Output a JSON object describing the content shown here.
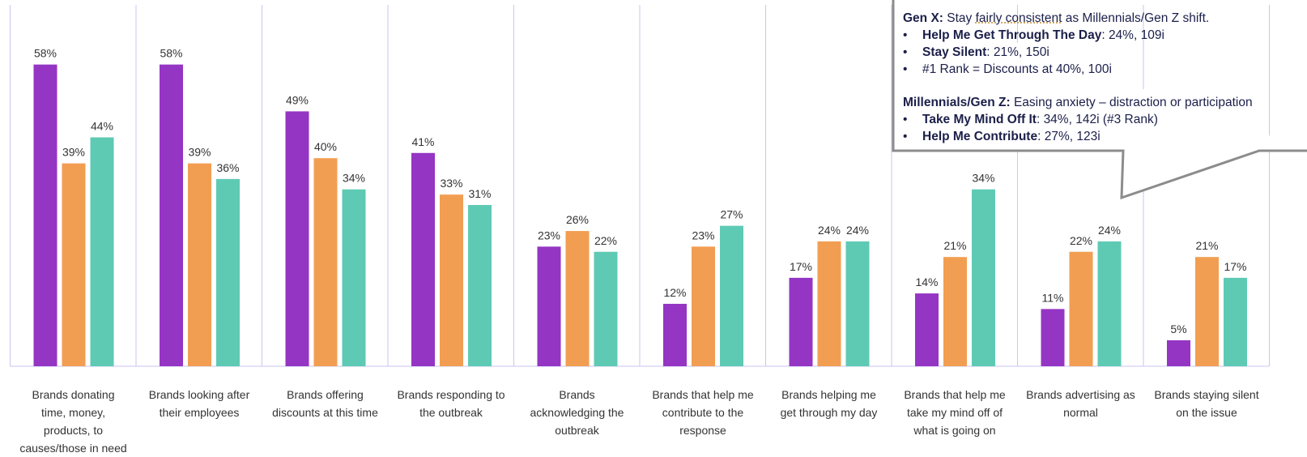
{
  "chart_data": {
    "type": "bar",
    "categories": [
      "Brands donating time, money, products, to causes/those in need",
      "Brands looking after their employees",
      "Brands offering discounts at this time",
      "Brands responding to the outbreak",
      "Brands acknowledging the outbreak",
      "Brands that help me contribute to the response",
      "Brands helping me get through my day",
      "Brands that help me take my mind off of what is going on",
      "Brands advertising as normal",
      "Brands staying silent on the issue"
    ],
    "category_lines": [
      [
        "Brands donating",
        "time, money,",
        "products, to",
        "causes/those in need"
      ],
      [
        "Brands looking after",
        "their employees"
      ],
      [
        "Brands offering",
        "discounts at this time"
      ],
      [
        "Brands responding to",
        "the outbreak"
      ],
      [
        "Brands",
        "acknowledging the",
        "outbreak"
      ],
      [
        "Brands that help me",
        "contribute to the",
        "response"
      ],
      [
        "Brands helping me",
        "get through my day"
      ],
      [
        "Brands that help me",
        "take my mind off of",
        "what is going on"
      ],
      [
        "Brands advertising as",
        "normal"
      ],
      [
        "Brands staying silent",
        "on the issue"
      ]
    ],
    "series": [
      {
        "color": "#9535c4",
        "values": [
          58,
          58,
          49,
          41,
          23,
          12,
          17,
          14,
          11,
          5
        ]
      },
      {
        "color": "#f29e52",
        "values": [
          39,
          39,
          40,
          33,
          26,
          23,
          24,
          21,
          22,
          21
        ]
      },
      {
        "color": "#5ecab4",
        "values": [
          44,
          36,
          34,
          31,
          22,
          27,
          24,
          34,
          24,
          17
        ]
      }
    ],
    "value_suffix": "%",
    "ylim": [
      0,
      70
    ],
    "grid": "vertical-separators",
    "legend": "none"
  },
  "callout": {
    "genx_heading": "Gen X:",
    "genx_text_before": " Stay ",
    "genx_text_dotted": "fairly consistent",
    "genx_text_after": " as Millennials/Gen Z shift.",
    "genx_bullets": [
      {
        "bold": "Help Me Get Through The Day",
        "text": ": 24%, 109i"
      },
      {
        "bold": "Stay Silent",
        "text": ": 21%, 150i"
      },
      {
        "bold": "",
        "text": "#1 Rank = Discounts at 40%, 100i"
      }
    ],
    "mil_heading": "Millennials/Gen Z:",
    "mil_text": " Easing anxiety – distraction or participation",
    "mil_bullets": [
      {
        "bold": "Take My Mind Off It",
        "text": ": 34%, 142i (#3 Rank)"
      },
      {
        "bold": "Help Me Contribute",
        "text": ": 27%, 123i"
      }
    ],
    "bullet_char": "•",
    "border_color": "#8c8c8c"
  }
}
